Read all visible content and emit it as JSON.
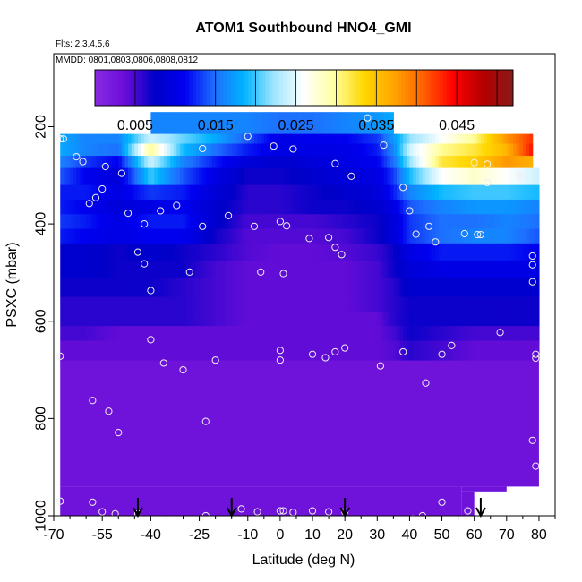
{
  "chart_data": {
    "type": "heatmap",
    "title": "ATOM1 Southbound HNO4_GMI",
    "notes": {
      "flights": "Flts: 2,3,4,5,6",
      "dates": "MMDD: 0801,0803,0806,0808,0812"
    },
    "xlabel": "Latitude (deg N)",
    "ylabel": "PSXC (mbar)",
    "x_range": [
      -70,
      85
    ],
    "y_range": [
      1000,
      50
    ],
    "y_reversed": true,
    "x_ticks": [
      -70,
      -55,
      -40,
      -25,
      -10,
      0,
      10,
      20,
      30,
      40,
      50,
      60,
      70,
      80
    ],
    "x_minor_ticks": [
      -65,
      -60,
      -50,
      -45,
      -35,
      -30,
      -20,
      -15,
      -5,
      5,
      15,
      25,
      35,
      45,
      55,
      65,
      75,
      85
    ],
    "y_ticks": [
      200,
      400,
      600,
      800,
      1000
    ],
    "colorbar": {
      "range": [
        0,
        0.052
      ],
      "ticks": [
        0.005,
        0.015,
        0.025,
        0.035,
        0.045
      ],
      "tick_labels": [
        "0.005",
        "0.015",
        "0.025",
        "0.035",
        "0.045"
      ],
      "divisions": [
        0,
        0.005,
        0.01,
        0.015,
        0.02,
        0.025,
        0.03,
        0.035,
        0.04,
        0.045,
        0.05,
        0.052
      ],
      "colors": [
        "#8a2be2",
        "#6a0dd8",
        "#0000c8",
        "#0000f0",
        "#1e6eff",
        "#00b4ff",
        "#a0e6ff",
        "#ffffff",
        "#ffffa0",
        "#ffd700",
        "#ffa500",
        "#ff6000",
        "#ff0000",
        "#b40000",
        "#8b1a1a"
      ]
    },
    "layer_boundaries_mbar": [
      170,
      215,
      235,
      260,
      285,
      320,
      350,
      380,
      410,
      440,
      475,
      510,
      550,
      580,
      610,
      640,
      680
    ],
    "lat_knots": [
      -68,
      -60,
      -50,
      -40,
      -30,
      -20,
      -10,
      0,
      10,
      20,
      30,
      35,
      40,
      50,
      60,
      70,
      80
    ],
    "layers": [
      {
        "p": [
          170,
          215
        ],
        "lat": [
          -40,
          35
        ],
        "v": [
          0.015,
          0.015,
          0.015,
          0.016,
          0.016,
          0.016,
          0.016,
          0.015,
          0.015,
          0.016,
          0.017,
          0.018,
          null,
          null,
          null,
          null,
          null
        ]
      },
      {
        "p": [
          215,
          235
        ],
        "lat": [
          -68,
          78
        ],
        "v": [
          0.018,
          0.016,
          0.016,
          0.024,
          0.021,
          0.018,
          0.014,
          0.01,
          0.011,
          0.011,
          0.013,
          0.017,
          0.022,
          0.026,
          0.03,
          0.038,
          0.044
        ]
      },
      {
        "p": [
          235,
          260
        ],
        "lat": [
          -68,
          78
        ],
        "v": [
          0.018,
          0.016,
          0.015,
          0.03,
          0.019,
          0.015,
          0.012,
          0.01,
          0.01,
          0.01,
          0.012,
          0.016,
          0.024,
          0.03,
          0.032,
          0.036,
          0.046
        ]
      },
      {
        "p": [
          260,
          285
        ],
        "lat": [
          -68,
          78
        ],
        "v": [
          0.016,
          0.013,
          0.011,
          0.024,
          0.016,
          0.012,
          0.009,
          0.008,
          0.009,
          0.01,
          0.011,
          0.015,
          0.022,
          0.032,
          0.034,
          0.038,
          0.036
        ]
      },
      {
        "p": [
          285,
          320
        ],
        "lat": [
          -68,
          80
        ],
        "v": [
          0.014,
          0.011,
          0.009,
          0.02,
          0.014,
          0.01,
          0.007,
          0.007,
          0.008,
          0.009,
          0.01,
          0.013,
          0.019,
          0.026,
          0.028,
          0.026,
          0.024
        ]
      },
      {
        "p": [
          320,
          350
        ],
        "lat": [
          -68,
          80
        ],
        "v": [
          0.012,
          0.012,
          0.01,
          0.013,
          0.012,
          0.009,
          0.006,
          0.006,
          0.007,
          0.008,
          0.009,
          0.012,
          0.016,
          0.019,
          0.02,
          0.02,
          0.019
        ]
      },
      {
        "p": [
          350,
          380
        ],
        "lat": [
          -68,
          80
        ],
        "v": [
          0.012,
          0.011,
          0.009,
          0.01,
          0.011,
          0.008,
          0.006,
          0.006,
          0.007,
          0.007,
          0.008,
          0.01,
          0.014,
          0.016,
          0.017,
          0.017,
          0.016
        ]
      },
      {
        "p": [
          380,
          410
        ],
        "lat": [
          -68,
          80
        ],
        "v": [
          0.013,
          0.012,
          0.01,
          0.012,
          0.012,
          0.008,
          0.005,
          0.005,
          0.005,
          0.006,
          0.007,
          0.009,
          0.013,
          0.015,
          0.015,
          0.016,
          0.015
        ]
      },
      {
        "p": [
          410,
          440
        ],
        "lat": [
          -68,
          80
        ],
        "v": [
          0.012,
          0.011,
          0.01,
          0.011,
          0.011,
          0.007,
          0.0045,
          0.0045,
          0.0045,
          0.005,
          0.007,
          0.009,
          0.013,
          0.015,
          0.016,
          0.016,
          0.014
        ]
      },
      {
        "p": [
          440,
          475
        ],
        "lat": [
          -68,
          80
        ],
        "v": [
          0.008,
          0.008,
          0.007,
          0.008,
          0.007,
          0.006,
          0.0045,
          0.004,
          0.004,
          0.0045,
          0.0055,
          0.007,
          0.01,
          0.012,
          0.012,
          0.012,
          0.011
        ]
      },
      {
        "p": [
          475,
          510
        ],
        "lat": [
          -68,
          80
        ],
        "v": [
          0.008,
          0.008,
          0.007,
          0.007,
          0.007,
          0.005,
          0.004,
          0.004,
          0.004,
          0.004,
          0.005,
          0.007,
          0.009,
          0.01,
          0.01,
          0.01,
          0.01
        ]
      },
      {
        "p": [
          510,
          550
        ],
        "lat": [
          -68,
          80
        ],
        "v": [
          0.007,
          0.007,
          0.007,
          0.007,
          0.006,
          0.005,
          0.004,
          0.004,
          0.004,
          0.004,
          0.005,
          0.006,
          0.008,
          0.008,
          0.008,
          0.008,
          0.008
        ]
      },
      {
        "p": [
          550,
          580
        ],
        "lat": [
          -68,
          80
        ],
        "v": [
          0.006,
          0.006,
          0.006,
          0.006,
          0.006,
          0.005,
          0.004,
          0.004,
          0.004,
          0.004,
          0.005,
          0.006,
          0.007,
          0.007,
          0.007,
          0.007,
          0.007
        ]
      },
      {
        "p": [
          580,
          610
        ],
        "lat": [
          -68,
          80
        ],
        "v": [
          0.006,
          0.006,
          0.006,
          0.006,
          0.006,
          0.005,
          0.004,
          0.004,
          0.004,
          0.004,
          0.004,
          0.006,
          0.007,
          0.007,
          0.007,
          0.007,
          0.007
        ]
      },
      {
        "p": [
          610,
          640
        ],
        "lat": [
          -68,
          80
        ],
        "v": [
          0.005,
          0.005,
          0.004,
          0.004,
          0.004,
          0.004,
          0.004,
          0.004,
          0.004,
          0.004,
          0.004,
          0.005,
          0.007,
          0.006,
          0.005,
          0.005,
          0.005
        ]
      },
      {
        "p": [
          640,
          680
        ],
        "lat": [
          -68,
          80
        ],
        "v": [
          0.004,
          0.004,
          0.004,
          0.004,
          0.004,
          0.004,
          0.004,
          0.004,
          0.004,
          0.004,
          0.004,
          0.0045,
          0.006,
          0.005,
          0.004,
          0.004,
          0.004
        ]
      }
    ],
    "background_field": {
      "value": 0.003,
      "extent": [
        [
          -68,
          680,
          80,
          940
        ],
        [
          -68,
          940,
          56,
          1000
        ],
        [
          56,
          940,
          70,
          950
        ],
        [
          56,
          950,
          60,
          1000
        ]
      ]
    },
    "observations": [
      [
        -42,
        195
      ],
      [
        -67,
        225
      ],
      [
        -68,
        225
      ],
      [
        -24,
        245
      ],
      [
        -63,
        262
      ],
      [
        -61,
        272
      ],
      [
        -54,
        282
      ],
      [
        -49,
        296
      ],
      [
        -55,
        328
      ],
      [
        -37,
        373
      ],
      [
        -32,
        362
      ],
      [
        -42,
        400
      ],
      [
        -59,
        358
      ],
      [
        -57,
        346
      ],
      [
        -47,
        378
      ],
      [
        -10,
        220
      ],
      [
        4,
        246
      ],
      [
        -2,
        240
      ],
      [
        0,
        395
      ],
      [
        2,
        404
      ],
      [
        -8,
        405
      ],
      [
        9,
        430
      ],
      [
        15,
        428
      ],
      [
        17,
        448
      ],
      [
        19,
        463
      ],
      [
        22,
        302
      ],
      [
        17,
        276
      ],
      [
        27,
        182
      ],
      [
        32,
        238
      ],
      [
        38,
        325
      ],
      [
        40,
        373
      ],
      [
        42,
        421
      ],
      [
        46,
        405
      ],
      [
        48,
        437
      ],
      [
        57,
        420
      ],
      [
        60,
        274
      ],
      [
        64,
        277
      ],
      [
        64,
        315
      ],
      [
        61,
        422
      ],
      [
        62,
        422
      ],
      [
        74,
        300
      ],
      [
        75,
        303
      ],
      [
        78,
        484
      ],
      [
        78,
        466
      ],
      [
        78,
        519
      ],
      [
        79,
        676
      ],
      [
        79,
        668
      ],
      [
        78,
        845
      ],
      [
        79,
        898
      ],
      [
        68,
        623
      ],
      [
        -44,
        458
      ],
      [
        -42,
        482
      ],
      [
        -40,
        537
      ],
      [
        -28,
        499
      ],
      [
        -16,
        383
      ],
      [
        -24,
        405
      ],
      [
        -6,
        499
      ],
      [
        1,
        502
      ],
      [
        -40,
        638
      ],
      [
        -36,
        686
      ],
      [
        -30,
        700
      ],
      [
        -20,
        680
      ],
      [
        0,
        660
      ],
      [
        0,
        680
      ],
      [
        10,
        668
      ],
      [
        14,
        675
      ],
      [
        17,
        663
      ],
      [
        20,
        655
      ],
      [
        31,
        692
      ],
      [
        38,
        663
      ],
      [
        45,
        727
      ],
      [
        50,
        668
      ],
      [
        53,
        650
      ],
      [
        -58,
        763
      ],
      [
        -53,
        785
      ],
      [
        -50,
        829
      ],
      [
        -23,
        806
      ],
      [
        -68,
        672
      ],
      [
        -68,
        970
      ],
      [
        -58,
        972
      ],
      [
        -55,
        992
      ],
      [
        -51,
        996
      ],
      [
        -44,
        996
      ],
      [
        -23,
        1000
      ],
      [
        -12,
        986
      ],
      [
        -7,
        992
      ],
      [
        0,
        990
      ],
      [
        1,
        990
      ],
      [
        4,
        993
      ],
      [
        10,
        990
      ],
      [
        15,
        992
      ],
      [
        20,
        992
      ],
      [
        41,
        1006
      ],
      [
        44,
        1000
      ],
      [
        50,
        972
      ],
      [
        58,
        990
      ]
    ],
    "arrows_at_lat": [
      -44,
      -15,
      20,
      62
    ]
  }
}
